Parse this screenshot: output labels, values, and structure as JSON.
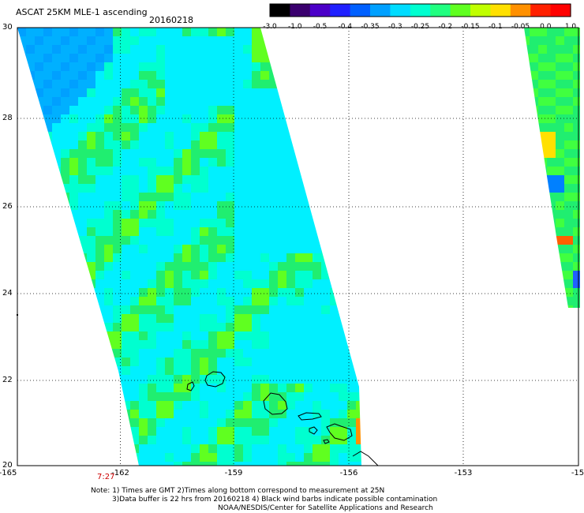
{
  "header": {
    "title": "ASCAT 25KM MLE-1 ascending",
    "date": "20160218"
  },
  "colorbar": {
    "tick_labels": [
      "-3.0",
      "-1.0",
      "-0.5",
      "-0.4",
      "-0.35",
      "-0.3",
      "-0.25",
      "-0.2",
      "-0.15",
      "-0.1",
      "-0.05",
      "0.0",
      "1.0"
    ],
    "colors": [
      "#000000",
      "#3a006e",
      "#4b00c8",
      "#2020ff",
      "#0060ff",
      "#00a0ff",
      "#00dcff",
      "#00ffd0",
      "#20ff80",
      "#60ff20",
      "#c0ff00",
      "#ffe000",
      "#ff9000",
      "#ff2000",
      "#ff0000"
    ]
  },
  "map": {
    "lon_labels": [
      "-165",
      "-162",
      "-159",
      "-156",
      "-153",
      "-15"
    ],
    "lat_labels": [
      "30",
      "28",
      "26",
      "24",
      "22",
      "20"
    ],
    "time_label": "7:27",
    "time_color": "#cc0000",
    "colors": {
      "swath_base": "#20ee70",
      "swath_cyan": "#00f0ff",
      "swath_blue": "#00b0ff",
      "coastline": "#000000"
    }
  },
  "notes": {
    "line1": "Note: 1) Times are GMT 2)Times along bottom correspond to measurement at 25N",
    "line2": "3)Data buffer is 22 hrs from 20160218 4) Black wind barbs indicate possible contamination",
    "line3": "NOAA/NESDIS/Center for Satellite Applications and Research"
  }
}
